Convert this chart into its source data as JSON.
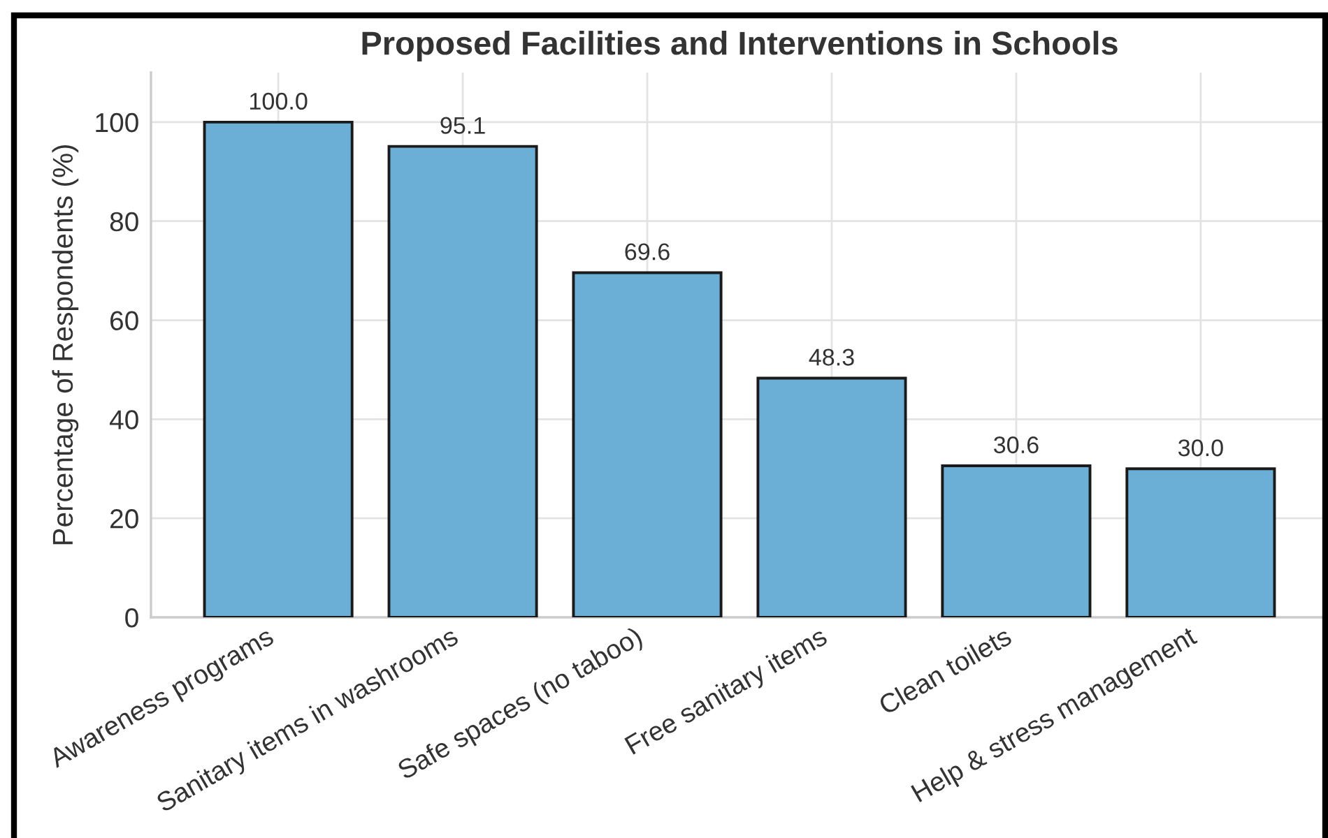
{
  "chart_data": {
    "type": "bar",
    "title": "Proposed Facilities and Interventions in Schools",
    "ylabel": "Percentage of Respondents (%)",
    "categories": [
      "Awareness programs",
      "Sanitary items in washrooms",
      "Safe spaces (no taboo)",
      "Free sanitary items",
      "Clean toilets",
      "Help & stress management"
    ],
    "values": [
      100.0,
      95.1,
      69.6,
      48.3,
      30.6,
      30.0
    ],
    "value_labels": [
      "100.0",
      "95.1",
      "69.6",
      "48.3",
      "30.6",
      "30.0"
    ],
    "color": "#6baed6",
    "ylim": [
      0,
      110
    ],
    "yticks": [
      0,
      20,
      40,
      60,
      80,
      100
    ],
    "grid": true,
    "legend": false
  }
}
